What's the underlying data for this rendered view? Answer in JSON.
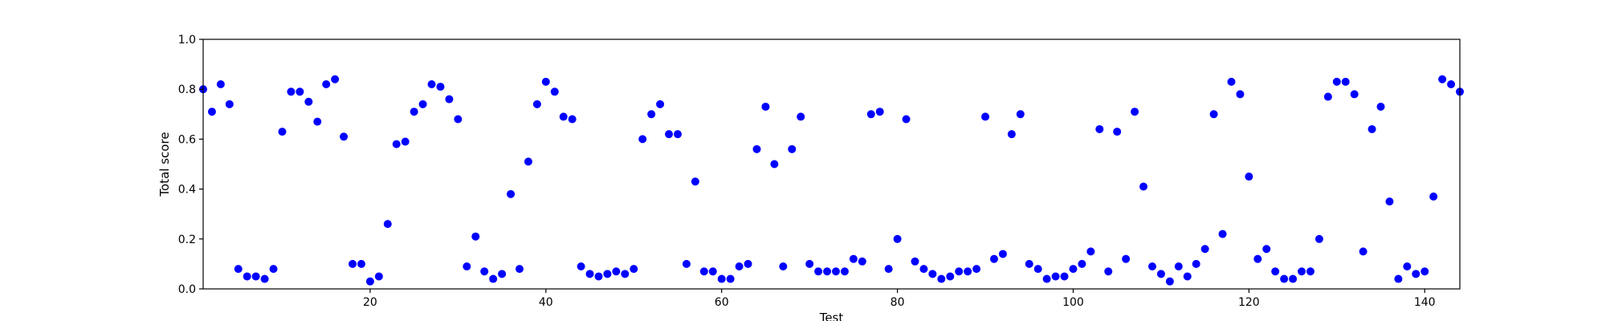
{
  "chart_data": {
    "type": "scatter",
    "title": "",
    "xlabel": "Test",
    "ylabel": "Total score",
    "xlim": [
      1,
      144
    ],
    "ylim": [
      0.0,
      1.0
    ],
    "grid": false,
    "marker_color": "#0000ff",
    "x_ticks": [
      20,
      40,
      60,
      80,
      100,
      120,
      140
    ],
    "x_tick_labels": [
      "20",
      "40",
      "60",
      "80",
      "100",
      "120",
      "140"
    ],
    "y_ticks": [
      0.0,
      0.2,
      0.4,
      0.6,
      0.8,
      1.0
    ],
    "y_tick_labels": [
      "0.0",
      "0.2",
      "0.4",
      "0.6",
      "0.8",
      "1.0"
    ],
    "x": [
      1,
      2,
      3,
      4,
      5,
      6,
      7,
      8,
      9,
      10,
      11,
      12,
      13,
      14,
      15,
      16,
      17,
      18,
      19,
      20,
      21,
      22,
      23,
      24,
      25,
      26,
      27,
      28,
      29,
      30,
      31,
      32,
      33,
      34,
      35,
      36,
      37,
      38,
      39,
      40,
      41,
      42,
      43,
      44,
      45,
      46,
      47,
      48,
      49,
      50,
      51,
      52,
      53,
      54,
      55,
      56,
      57,
      58,
      59,
      60,
      61,
      62,
      63,
      64,
      65,
      66,
      67,
      68,
      69,
      70,
      71,
      72,
      73,
      74,
      75,
      76,
      77,
      78,
      79,
      80,
      81,
      82,
      83,
      84,
      85,
      86,
      87,
      88,
      89,
      90,
      91,
      92,
      93,
      94,
      95,
      96,
      97,
      98,
      99,
      100,
      101,
      102,
      103,
      104,
      105,
      106,
      107,
      108,
      109,
      110,
      111,
      112,
      113,
      114,
      115,
      116,
      117,
      118,
      119,
      120,
      121,
      122,
      123,
      124,
      125,
      126,
      127,
      128,
      129,
      130,
      131,
      132,
      133,
      134,
      135,
      136,
      137,
      138,
      139,
      140,
      141,
      142,
      143,
      144
    ],
    "y": [
      0.8,
      0.71,
      0.82,
      0.74,
      0.08,
      0.05,
      0.05,
      0.04,
      0.08,
      0.63,
      0.79,
      0.79,
      0.75,
      0.67,
      0.82,
      0.84,
      0.61,
      0.1,
      0.1,
      0.03,
      0.05,
      0.26,
      0.58,
      0.59,
      0.71,
      0.74,
      0.82,
      0.81,
      0.76,
      0.68,
      0.09,
      0.21,
      0.07,
      0.04,
      0.06,
      0.38,
      0.08,
      0.51,
      0.74,
      0.83,
      0.79,
      0.69,
      0.68,
      0.09,
      0.06,
      0.05,
      0.06,
      0.07,
      0.06,
      0.08,
      0.6,
      0.7,
      0.74,
      0.62,
      0.62,
      0.1,
      0.43,
      0.07,
      0.07,
      0.04,
      0.04,
      0.09,
      0.1,
      0.56,
      0.73,
      0.5,
      0.09,
      0.56,
      0.69,
      0.1,
      0.07,
      0.07,
      0.07,
      0.07,
      0.12,
      0.11,
      0.7,
      0.71,
      0.08,
      0.2,
      0.68,
      0.11,
      0.08,
      0.06,
      0.04,
      0.05,
      0.07,
      0.07,
      0.08,
      0.69,
      0.12,
      0.14,
      0.62,
      0.7,
      0.1,
      0.08,
      0.04,
      0.05,
      0.05,
      0.08,
      0.1,
      0.15,
      0.64,
      0.07,
      0.63,
      0.12,
      0.71,
      0.41,
      0.09,
      0.06,
      0.03,
      0.09,
      0.05,
      0.1,
      0.16,
      0.7,
      0.22,
      0.83,
      0.78,
      0.45,
      0.12,
      0.16,
      0.07,
      0.04,
      0.04,
      0.07,
      0.07,
      0.2,
      0.77,
      0.83,
      0.83,
      0.78,
      0.15,
      0.64,
      0.73,
      0.35,
      0.04,
      0.09,
      0.06,
      0.07,
      0.37,
      0.84,
      0.82,
      0.79
    ]
  }
}
